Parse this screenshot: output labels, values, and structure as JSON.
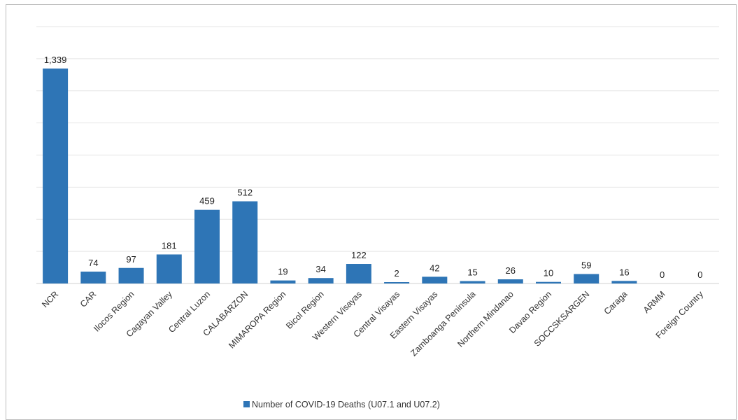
{
  "chart_data": {
    "type": "bar",
    "categories": [
      "NCR",
      "CAR",
      "Ilocos Region",
      "Cagayan Valley",
      "Central Luzon",
      "CALABARZON",
      "MIMAROPA Region",
      "Bicol Region",
      "Western Visayas",
      "Central Visayas",
      "Eastern Visayas",
      "Zamboanga Peninsula",
      "Northern Mindanao",
      "Davao Region",
      "SOCCSKSARGEN",
      "Caraga",
      "ARMM",
      "Foreign Country"
    ],
    "series": [
      {
        "name": "Number of COVID-19 Deaths (U07.1 and U07.2)",
        "values": [
          1339,
          74,
          97,
          181,
          459,
          512,
          19,
          34,
          122,
          2,
          42,
          15,
          26,
          10,
          59,
          16,
          0,
          0
        ],
        "labels": [
          "1,339",
          "74",
          "97",
          "181",
          "459",
          "512",
          "19",
          "34",
          "122",
          "2",
          "42",
          "15",
          "26",
          "10",
          "59",
          "16",
          "0",
          "0"
        ]
      }
    ],
    "ylim": [
      0,
      1600
    ],
    "grid": true,
    "legend_position": "bottom",
    "bar_color": "#2e75b6"
  }
}
